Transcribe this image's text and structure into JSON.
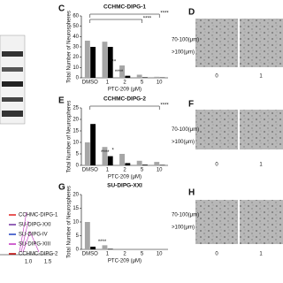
{
  "chart_data": [
    {
      "type": "bar",
      "title": "CCHMC-DIPG-1",
      "y_label": "Total Number of Neurospheres",
      "x_label": "PTC-209 (μM)",
      "categories": [
        "DMSO",
        "1",
        "2",
        "5",
        "10"
      ],
      "series": [
        {
          "name": "70-100(μm)",
          "color": "#a6a6a6",
          "values": [
            36,
            35,
            12,
            3,
            1
          ]
        },
        {
          "name": ">100(μm)",
          "color": "#000000",
          "values": [
            30,
            30,
            2,
            0.5,
            0.3
          ]
        }
      ],
      "ylim": [
        0,
        60
      ],
      "yticks": [
        0,
        10,
        20,
        30,
        40,
        50,
        60
      ],
      "annotations": [
        "***",
        "****",
        "****",
        "****"
      ]
    },
    {
      "type": "bar",
      "title": "CCHMC-DIPG-2",
      "y_label": "Total Number of Neurospheres",
      "x_label": "PTC-209 (μM)",
      "categories": [
        "DMSO",
        "1",
        "2",
        "5",
        "10"
      ],
      "series": [
        {
          "name": "70-100(μm)",
          "color": "#a6a6a6",
          "values": [
            10,
            8,
            5,
            2,
            1.5
          ]
        },
        {
          "name": ">100(μm)",
          "color": "#000000",
          "values": [
            18,
            4,
            1,
            0.3,
            0.2
          ]
        }
      ],
      "ylim": [
        0,
        25
      ],
      "yticks": [
        0,
        5,
        10,
        15,
        20,
        25
      ],
      "annotations": [
        "*",
        "****",
        "****"
      ]
    },
    {
      "type": "bar",
      "title": "SU-DIPG-XXI",
      "y_label": "Total Number of Neurospheres",
      "x_label": "PTC-209 (μM)",
      "categories": [
        "DMSO",
        "1",
        "2",
        "5",
        "10"
      ],
      "series": [
        {
          "name": "70-100(μm)",
          "color": "#a6a6a6",
          "values": [
            10,
            1.5,
            0,
            0,
            0
          ]
        },
        {
          "name": ">100(μm)",
          "color": "#000000",
          "values": [
            1,
            0.2,
            0,
            0,
            0
          ]
        }
      ],
      "ylim": [
        0,
        20
      ],
      "yticks": [
        0,
        5,
        10,
        15,
        20
      ],
      "annotations": [
        "****"
      ]
    }
  ],
  "figure": {
    "panel_letters": [
      "C",
      "D",
      "E",
      "F",
      "G",
      "H"
    ],
    "micrograph_labels": [
      "0",
      "1"
    ],
    "left_legend": [
      {
        "name": "CCHMC-DIPG-1",
        "color": "#e02020"
      },
      {
        "name": "SU-DIPG-XXI",
        "color": "#7030a0"
      },
      {
        "name": "SU-DIPG-IV",
        "color": "#2040c0"
      },
      {
        "name": "SU-DIPG-XIII",
        "color": "#c030c0"
      },
      {
        "name": "CCHMC-DIPG-2",
        "color": "#c00000"
      }
    ],
    "left_axis_ticks": [
      "1.0",
      "1.5"
    ]
  }
}
